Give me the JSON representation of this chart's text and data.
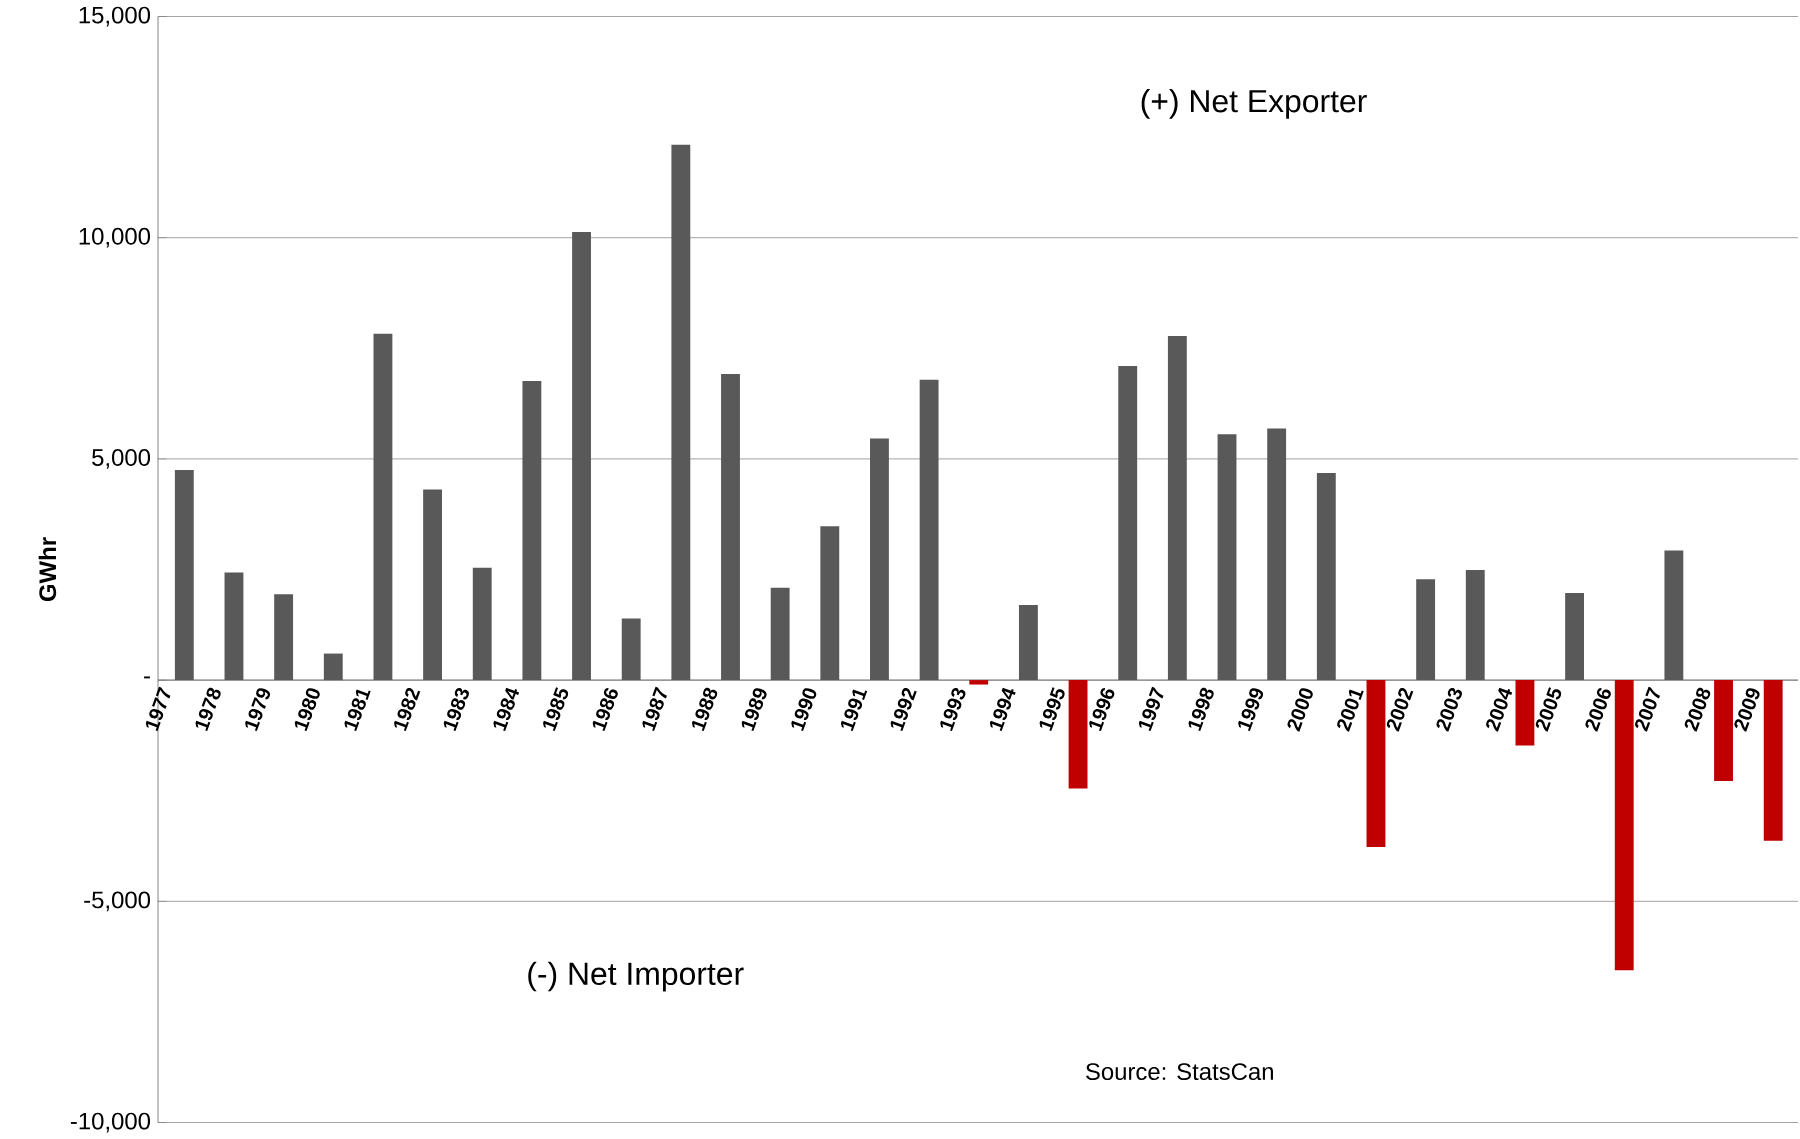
{
  "chart_data": {
    "type": "bar",
    "ylabel": "GWhr",
    "categories": [
      "1977",
      "1978",
      "1979",
      "1980",
      "1981",
      "1982",
      "1983",
      "1984",
      "1985",
      "1986",
      "1987",
      "1988",
      "1989",
      "1990",
      "1991",
      "1992",
      "1993",
      "1994",
      "1995",
      "1996",
      "1997",
      "1998",
      "1999",
      "2000",
      "2001",
      "2002",
      "2003",
      "2004",
      "2005",
      "2006",
      "2007",
      "2008",
      "2009"
    ],
    "values": [
      4750,
      2430,
      1940,
      600,
      7830,
      4310,
      2540,
      6760,
      10130,
      1390,
      12100,
      6920,
      2090,
      3480,
      5460,
      6790,
      -100,
      1700,
      -2450,
      7100,
      7780,
      5560,
      5690,
      4680,
      -3770,
      2280,
      2490,
      -1480,
      1970,
      -6560,
      2930,
      -2280,
      -3630
    ],
    "colors": [
      "#595959",
      "#595959",
      "#595959",
      "#595959",
      "#595959",
      "#595959",
      "#595959",
      "#595959",
      "#595959",
      "#595959",
      "#595959",
      "#595959",
      "#595959",
      "#595959",
      "#595959",
      "#595959",
      "#c00000",
      "#595959",
      "#c00000",
      "#595959",
      "#595959",
      "#595959",
      "#595959",
      "#595959",
      "#c00000",
      "#595959",
      "#595959",
      "#c00000",
      "#595959",
      "#c00000",
      "#595959",
      "#c00000",
      "#c00000"
    ],
    "ylim": [
      -10000,
      15000
    ],
    "yticks": [
      {
        "value": 15000,
        "label": "15,000"
      },
      {
        "value": 10000,
        "label": "10,000"
      },
      {
        "value": 5000,
        "label": "5,000"
      },
      {
        "value": 0,
        "label": "-"
      },
      {
        "value": -5000,
        "label": "-5,000"
      },
      {
        "value": -10000,
        "label": "-10,000"
      }
    ],
    "grid": "y",
    "annotations": [
      "(+) Net Exporter",
      "(-) Net Importer",
      "Source: StatsCan"
    ]
  }
}
